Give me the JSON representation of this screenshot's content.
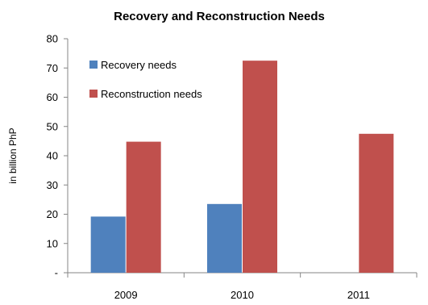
{
  "chart_data": {
    "type": "bar",
    "title": "Recovery and Reconstruction Needs",
    "ylabel": "in billion PhP",
    "xlabel": "",
    "categories": [
      "2009",
      "2010",
      "2011"
    ],
    "ylim": [
      0,
      80
    ],
    "yticks": [
      0,
      10,
      20,
      30,
      40,
      50,
      60,
      70,
      80
    ],
    "ytick_labels": [
      "-",
      "10",
      "20",
      "30",
      "40",
      "50",
      "60",
      "70",
      "80"
    ],
    "grid": false,
    "legend_position": "top-left",
    "series": [
      {
        "name": "Recovery needs",
        "color": "#4F81BD",
        "values": [
          19.2,
          23.5,
          0
        ]
      },
      {
        "name": "Reconstruction needs",
        "color": "#C0504D",
        "values": [
          44.8,
          72.5,
          47.5
        ]
      }
    ]
  }
}
